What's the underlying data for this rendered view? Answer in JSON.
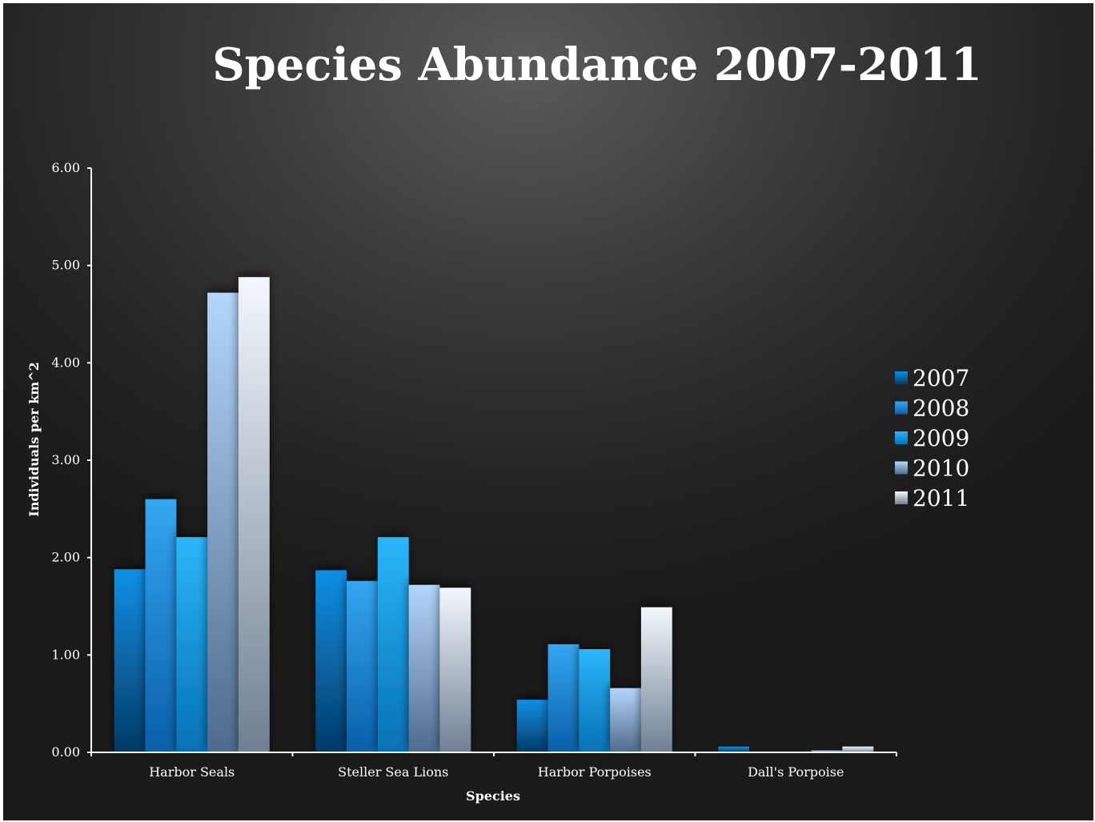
{
  "chart_data": {
    "type": "bar",
    "title": "Species Abundance 2007-2011",
    "xlabel": "Species",
    "ylabel": "Individuals per km^2",
    "ylim": [
      0,
      6
    ],
    "yticks": [
      "0.00",
      "1.00",
      "2.00",
      "3.00",
      "4.00",
      "5.00",
      "6.00"
    ],
    "categories": [
      "Harbor Seals",
      "Steller Sea Lions",
      "Harbor Porpoises",
      "Dall's Porpoise"
    ],
    "series": [
      {
        "name": "2007",
        "color_top": "#0a8fe6",
        "color_bottom": "#053a66",
        "values": [
          1.88,
          1.87,
          0.54,
          0.06
        ]
      },
      {
        "name": "2008",
        "color_top": "#34a6f2",
        "color_bottom": "#0a5ea8",
        "values": [
          2.6,
          1.76,
          1.11,
          0.0
        ]
      },
      {
        "name": "2009",
        "color_top": "#2cb6fb",
        "color_bottom": "#0670b4",
        "values": [
          2.21,
          2.21,
          1.06,
          0.0
        ]
      },
      {
        "name": "2010",
        "color_top": "#b4d6fb",
        "color_bottom": "#4e6a8c",
        "values": [
          4.72,
          1.72,
          0.66,
          0.02
        ]
      },
      {
        "name": "2011",
        "color_top": "#f3f8fe",
        "color_bottom": "#6f7f92",
        "values": [
          4.88,
          1.69,
          1.49,
          0.06
        ]
      }
    ],
    "legend_position": "right",
    "grid": false
  }
}
